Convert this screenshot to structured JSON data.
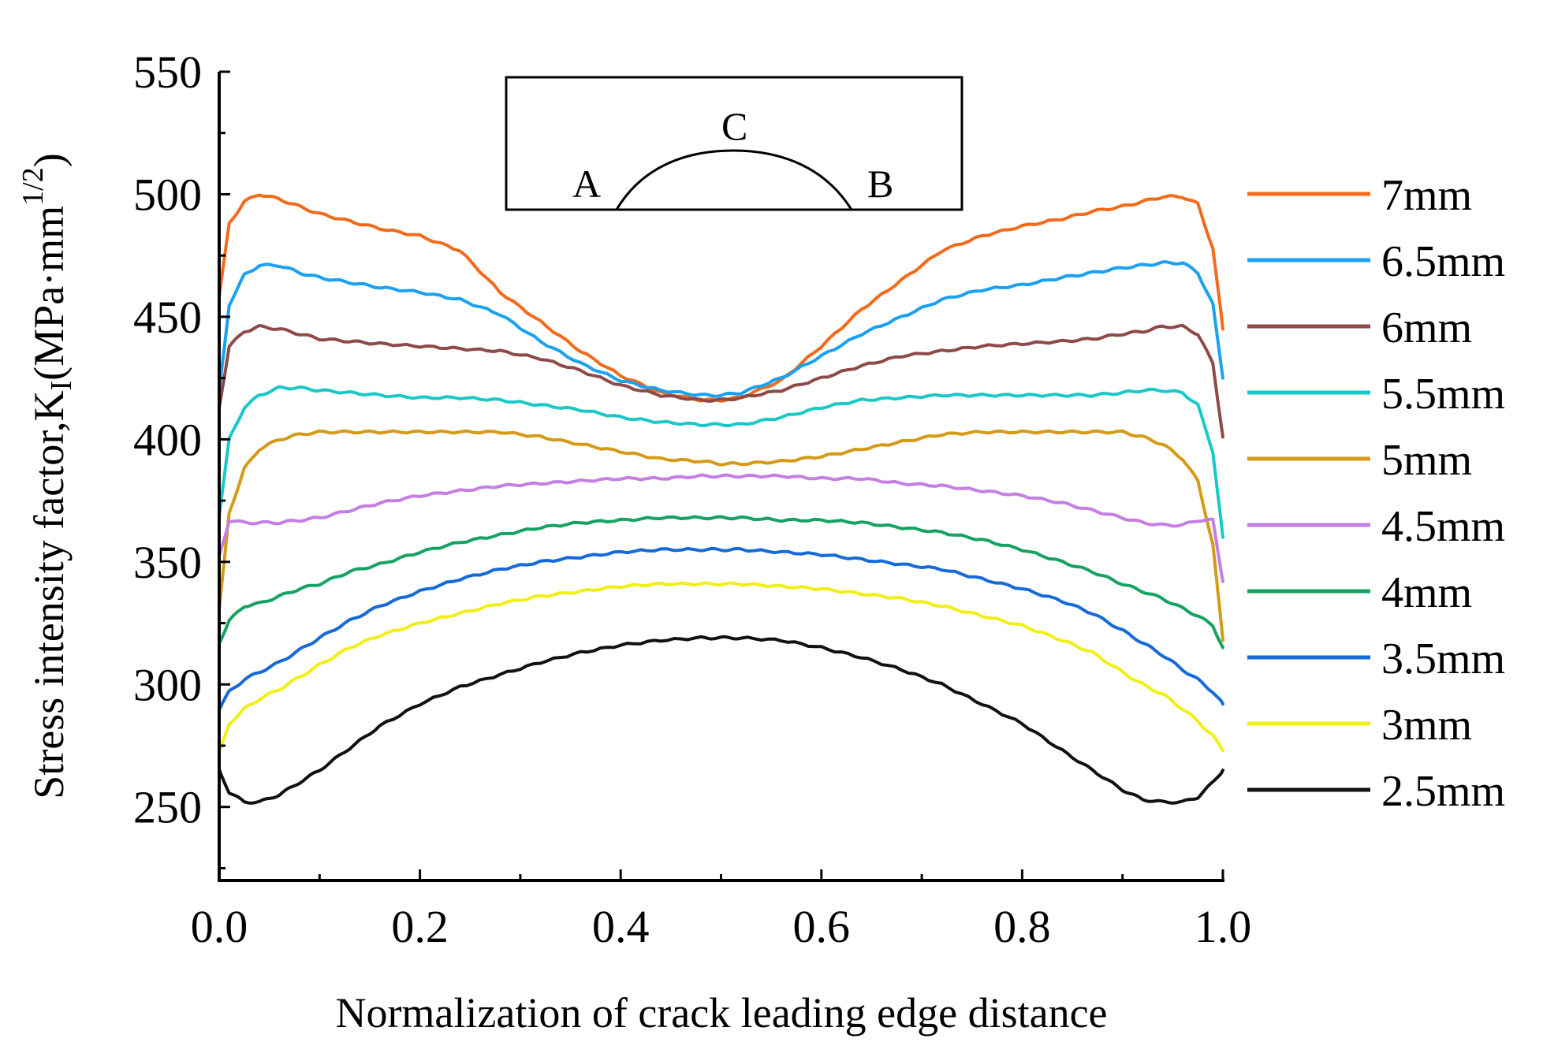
{
  "chart_data": {
    "type": "line",
    "title": "",
    "xlabel": "Normalization of crack leading edge distance",
    "ylabel": {
      "main": "Stress intensity factor,K",
      "subscript": "I",
      "unit_open": "(MPa·mm",
      "superscript": "1/2",
      "unit_close": ")"
    },
    "xlim": [
      0.0,
      1.0
    ],
    "ylim": [
      220,
      550
    ],
    "xticks": [
      0.0,
      0.2,
      0.4,
      0.6,
      0.8,
      1.0
    ],
    "xtick_labels": [
      "0.0",
      "0.2",
      "0.4",
      "0.6",
      "0.8",
      "1.0"
    ],
    "yticks": [
      250,
      300,
      350,
      400,
      450,
      500,
      550
    ],
    "ytick_labels": [
      "250",
      "300",
      "350",
      "400",
      "450",
      "500",
      "550"
    ],
    "inset": {
      "labels": {
        "a": "A",
        "b": "B",
        "c": "C"
      }
    },
    "legend_position": "right",
    "x": [
      0.0,
      0.01,
      0.025,
      0.04,
      0.06,
      0.08,
      0.1,
      0.13,
      0.16,
      0.2,
      0.24,
      0.28,
      0.32,
      0.36,
      0.4,
      0.44,
      0.48,
      0.5,
      0.52,
      0.56,
      0.6,
      0.64,
      0.68,
      0.72,
      0.76,
      0.8,
      0.84,
      0.87,
      0.9,
      0.92,
      0.94,
      0.96,
      0.975,
      0.99,
      1.0
    ],
    "series": [
      {
        "name": "7mm",
        "color": "#f26a1b",
        "values": [
          458,
          488,
          497,
          500,
          498,
          495,
          492,
          489,
          486,
          483,
          477,
          460,
          448,
          436,
          426,
          419,
          416,
          416,
          417,
          424,
          438,
          453,
          465,
          477,
          483,
          487,
          490,
          493,
          495,
          497,
          499,
          499,
          496,
          478,
          445
        ]
      },
      {
        "name": "6.5mm",
        "color": "#1aa1f0",
        "values": [
          419,
          455,
          467,
          471,
          471,
          468,
          466,
          464,
          462,
          460,
          457,
          451,
          440,
          431,
          424,
          420,
          418,
          418,
          419,
          425,
          434,
          443,
          450,
          457,
          461,
          463,
          466,
          468,
          470,
          471,
          472,
          472,
          468,
          455,
          425
        ]
      },
      {
        "name": "6mm",
        "color": "#8e4a48",
        "values": [
          413,
          438,
          444,
          446,
          445,
          443,
          441,
          440,
          439,
          438,
          437,
          436,
          433,
          428,
          422,
          418,
          416,
          416,
          417,
          420,
          425,
          430,
          434,
          436,
          438,
          439,
          440,
          441,
          443,
          444,
          446,
          446,
          443,
          431,
          401
        ]
      },
      {
        "name": "5.5mm",
        "color": "#1ac8c8",
        "values": [
          369,
          400,
          413,
          418,
          421,
          421,
          420,
          419,
          418,
          417,
          417,
          416,
          414,
          412,
          409,
          407,
          406,
          406,
          406,
          409,
          413,
          416,
          417,
          418,
          418,
          418,
          418,
          418,
          419,
          420,
          420,
          419,
          414,
          395,
          360
        ]
      },
      {
        "name": "5mm",
        "color": "#d49a18",
        "values": [
          330,
          370,
          388,
          396,
          400,
          402,
          403,
          403,
          403,
          403,
          403,
          403,
          401,
          398,
          395,
          392,
          391,
          390,
          390,
          391,
          393,
          396,
          399,
          402,
          403,
          403,
          403,
          403,
          403,
          401,
          398,
          392,
          383,
          357,
          318
        ]
      },
      {
        "name": "4.5mm",
        "color": "#c57ee2",
        "values": [
          352,
          367,
          366,
          366,
          366,
          367,
          368,
          371,
          374,
          377,
          379,
          381,
          382,
          383,
          384,
          384,
          385,
          385,
          385,
          385,
          384,
          384,
          382,
          381,
          379,
          377,
          374,
          371,
          368,
          366,
          365,
          365,
          367,
          367,
          342
        ]
      },
      {
        "name": "4mm",
        "color": "#16a262",
        "values": [
          317,
          326,
          332,
          333,
          336,
          339,
          341,
          346,
          349,
          354,
          358,
          361,
          364,
          366,
          367,
          368,
          368,
          368,
          368,
          367,
          367,
          366,
          364,
          362,
          359,
          355,
          350,
          346,
          341,
          338,
          335,
          331,
          328,
          324,
          315
        ]
      },
      {
        "name": "3.5mm",
        "color": "#166ad8",
        "values": [
          290,
          297,
          302,
          305,
          309,
          314,
          319,
          326,
          332,
          338,
          343,
          347,
          350,
          352,
          354,
          355,
          355,
          355,
          355,
          354,
          353,
          351,
          349,
          347,
          343,
          339,
          334,
          329,
          322,
          317,
          312,
          306,
          302,
          297,
          292
        ]
      },
      {
        "name": "3mm",
        "color": "#f0f018",
        "values": [
          272,
          284,
          290,
          294,
          298,
          303,
          308,
          315,
          320,
          325,
          329,
          333,
          336,
          338,
          340,
          341,
          341,
          341,
          341,
          340,
          339,
          337,
          335,
          332,
          328,
          324,
          318,
          313,
          305,
          300,
          296,
          290,
          285,
          279,
          273
        ]
      },
      {
        "name": "2.5mm",
        "color": "#111111",
        "values": [
          265,
          256,
          252,
          252,
          255,
          260,
          265,
          274,
          283,
          292,
          299,
          304,
          309,
          313,
          316,
          318,
          319,
          319,
          319,
          318,
          315,
          311,
          306,
          300,
          292,
          284,
          273,
          265,
          257,
          253,
          252,
          252,
          254,
          260,
          265
        ]
      }
    ]
  }
}
